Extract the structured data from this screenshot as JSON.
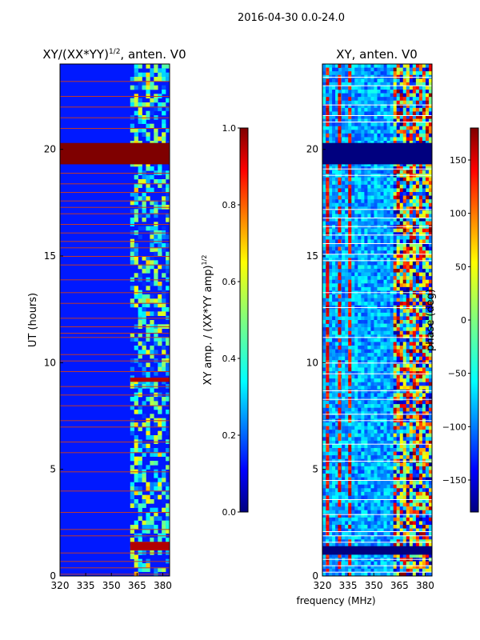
{
  "figure": {
    "suptitle": "2016-04-30 0.0-24.0",
    "xlabel": "frequency (MHz)"
  },
  "colors": {
    "jet": [
      "#00007f",
      "#0000ff",
      "#007fff",
      "#00ffff",
      "#7fff7f",
      "#ffff00",
      "#ff7f00",
      "#ff0000",
      "#7f0000"
    ],
    "flag_line": "#c0392b",
    "white_line": "#ffffff"
  },
  "chart_data": [
    {
      "type": "heatmap",
      "title_main": "XY/(XX*YY)",
      "title_exp": "1/2",
      "title_tail": ", anten. V0",
      "ylabel": "UT (hours)",
      "xlim": [
        320,
        384
      ],
      "ylim": [
        0,
        24
      ],
      "xticks": [
        320,
        335,
        350,
        365,
        380
      ],
      "yticks": [
        0,
        5,
        10,
        15,
        20
      ],
      "value_range": [
        0,
        1
      ],
      "background_value": 0.15,
      "bright_band_x": [
        361,
        384
      ],
      "flagged_full_rows_hours": [
        [
          19.3,
          20.3
        ],
        [
          9.1,
          9.3
        ],
        [
          1.2,
          1.6
        ]
      ],
      "flag_lines_hours": [
        0.1,
        0.4,
        0.7,
        1.1,
        1.9,
        2.2,
        3.0,
        4.0,
        4.9,
        5.8,
        6.3,
        7.0,
        7.3,
        8.0,
        8.5,
        8.9,
        9.6,
        10.1,
        10.4,
        11.2,
        11.4,
        11.7,
        12.1,
        12.8,
        13.3,
        13.9,
        14.6,
        15.0,
        15.4,
        15.7,
        16.1,
        16.5,
        17.0,
        17.3,
        17.6,
        18.0,
        18.4,
        18.9,
        21.0,
        21.5,
        22.0,
        22.5,
        23.2
      ]
    },
    {
      "type": "heatmap",
      "title": "XY, anten. V0",
      "xlim": [
        320,
        384
      ],
      "ylim": [
        0,
        24
      ],
      "xticks": [
        320,
        335,
        350,
        365,
        380
      ],
      "yticks": [
        0,
        5,
        10,
        15,
        20
      ],
      "value_range": [
        -180,
        180
      ],
      "flagged_full_rows_hours": [
        [
          19.3,
          20.3
        ],
        [
          1.0,
          1.4
        ]
      ],
      "white_lines_hours": [
        0.2,
        0.5,
        0.8,
        1.6,
        1.9,
        2.1,
        2.9,
        3.6,
        4.5,
        5.4,
        6.2,
        7.3,
        7.6,
        8.3,
        8.7,
        9.5,
        10.0,
        11.2,
        12.6,
        13.3,
        14.8,
        15.1,
        15.6,
        16.0,
        16.4,
        16.8,
        17.2,
        18.8,
        19.1,
        21.3,
        21.6,
        22.1,
        23.0,
        23.4
      ],
      "red_stripes_mhz": [
        323,
        330,
        336
      ],
      "noisy_band_x": [
        361,
        384
      ]
    }
  ],
  "colorbars": [
    {
      "label_main": "XY amp. / (XX*YY amp)",
      "label_exp": "1/2",
      "range": [
        0,
        1
      ],
      "ticks": [
        "0.0",
        "0.2",
        "0.4",
        "0.6",
        "0.8",
        "1.0"
      ]
    },
    {
      "label_main": "phase (deg)",
      "range": [
        -180,
        180
      ],
      "ticks": [
        "−150",
        "−100",
        "−50",
        "0",
        "50",
        "100",
        "150"
      ]
    }
  ]
}
